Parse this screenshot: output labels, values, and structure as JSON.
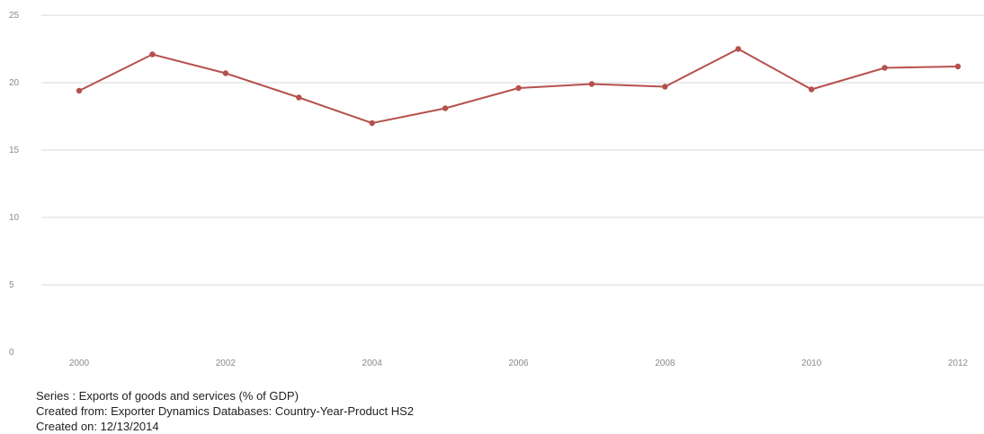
{
  "chart_data": {
    "type": "line",
    "title": "",
    "xlabel": "",
    "ylabel": "",
    "x": [
      2000,
      2001,
      2002,
      2003,
      2004,
      2005,
      2006,
      2007,
      2008,
      2009,
      2010,
      2011,
      2012
    ],
    "x_tick_labels": [
      "2000",
      "2002",
      "2004",
      "2006",
      "2008",
      "2010",
      "2012"
    ],
    "y_tick_labels": [
      "0",
      "5",
      "10",
      "15",
      "20",
      "25"
    ],
    "xlim": [
      2000,
      2012
    ],
    "ylim": [
      0,
      25
    ],
    "grid": true,
    "series": [
      {
        "name": "",
        "color": "#b5514d",
        "values": [
          19.4,
          22.1,
          20.7,
          18.9,
          17.0,
          18.1,
          19.6,
          19.9,
          19.7,
          22.5,
          19.5,
          21.1,
          21.2
        ]
      }
    ]
  },
  "footer": {
    "series": "Series : Exports of goods and services (% of GDP)",
    "source": "Created from: Exporter Dynamics Databases: Country-Year-Product HS2",
    "date": "Created on: 12/13/2014"
  }
}
